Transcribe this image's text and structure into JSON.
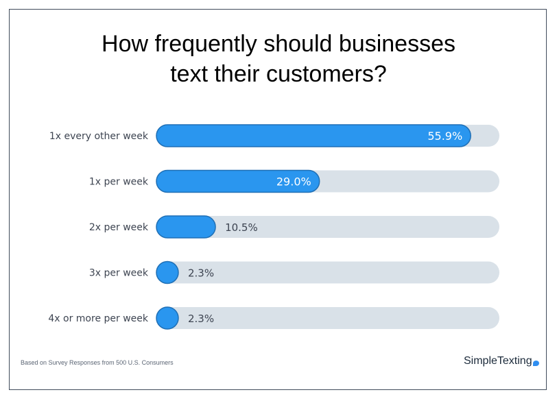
{
  "page": {
    "title_line1": "How frequently should businesses",
    "title_line2": "text their customers?",
    "footnote": "Based on Survey Responses from 500 U.S. Consumers",
    "brand": "SimpleTexting"
  },
  "colors": {
    "bar": "#2a96ef",
    "bar_edge": "#1f6fb5",
    "track": "#d9e1e8",
    "text": "#3d4451"
  },
  "chart_data": {
    "type": "bar",
    "orientation": "horizontal",
    "title": "How frequently should businesses text their customers?",
    "categories": [
      "1x every other week",
      "1x per week",
      "2x per week",
      "3x per week",
      "4x or more per week"
    ],
    "values": [
      55.9,
      29.0,
      10.5,
      2.3,
      2.3
    ],
    "value_labels": [
      "55.9%",
      "29.0%",
      "10.5%",
      "2.3%",
      "2.3%"
    ],
    "unit": "%",
    "xlim": [
      0,
      61
    ],
    "grid": false,
    "legend": "none"
  }
}
